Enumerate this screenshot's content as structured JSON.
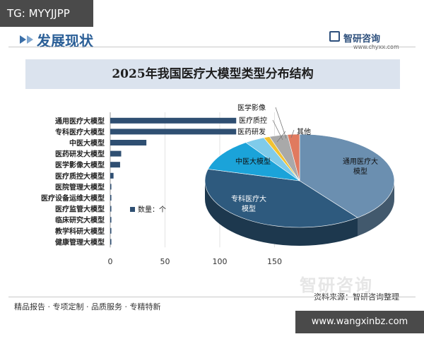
{
  "tag_top": "TG: MYYJJPP",
  "section_title": "发展现状",
  "brand": {
    "name": "智研咨询",
    "url": "www.chyxx.com"
  },
  "watermark": "智研咨询",
  "source": "资料来源：智研咨询整理",
  "footer": "精品报告 · 专项定制 · 品质服务 · 专精特新",
  "tag_bottom": "www.wangxinbz.com",
  "chart_data": [
    {
      "type": "bar",
      "orientation": "horizontal",
      "title": "2025年我国医疗大模型类型分布结构",
      "categories": [
        "通用医疗大模型",
        "专科医疗大模型",
        "中医大模型",
        "医药研发大模型",
        "医学影像大模型",
        "医疗质控大模型",
        "医院管理大模型",
        "医疗设备运维大模型",
        "医疗监管大模型",
        "临床研究大模型",
        "教学科研大模型",
        "健康管理大模型"
      ],
      "series": [
        {
          "name": "数量：个",
          "values": [
            115,
            115,
            33,
            10,
            9,
            3,
            1,
            1,
            1,
            1,
            1,
            1
          ]
        }
      ],
      "xlim": [
        0,
        170
      ],
      "xticks": [
        0,
        50,
        100,
        150
      ],
      "legend": "center",
      "colors": {
        "bar": "#2f4f72"
      }
    },
    {
      "type": "pie",
      "style": "3d",
      "labels": [
        "通用医疗大模型",
        "专科医疗大模型",
        "中医大模型",
        "医药研发",
        "医疗质控",
        "医学影像",
        "其他"
      ],
      "values": [
        115,
        115,
        33,
        10,
        3,
        9,
        6
      ],
      "colors": [
        "#6b8fb0",
        "#2e5a7e",
        "#1ba3d9",
        "#7fcbea",
        "#f1c232",
        "#a9a9a9",
        "#e07a5f"
      ]
    }
  ]
}
